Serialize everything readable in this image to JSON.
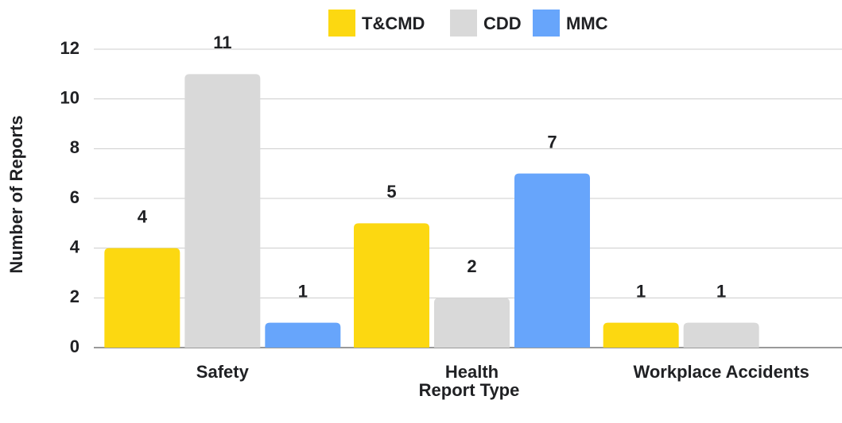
{
  "chart_data": {
    "type": "bar",
    "categories": [
      "Safety",
      "Health",
      "Workplace Accidents"
    ],
    "series": [
      {
        "name": "T&CMD",
        "color": "#fcd811",
        "values": [
          4,
          5,
          1
        ]
      },
      {
        "name": "CDD",
        "color": "#d9d9d9",
        "values": [
          11,
          2,
          1
        ]
      },
      {
        "name": "MMC",
        "color": "#67a5fb",
        "values": [
          1,
          7,
          null
        ]
      }
    ],
    "xlabel": "Report Type",
    "ylabel": "Number of Reports",
    "ylim": [
      0,
      12
    ],
    "yticks": [
      0,
      2,
      4,
      6,
      8,
      10,
      12
    ],
    "grid": true,
    "legend": "top"
  }
}
